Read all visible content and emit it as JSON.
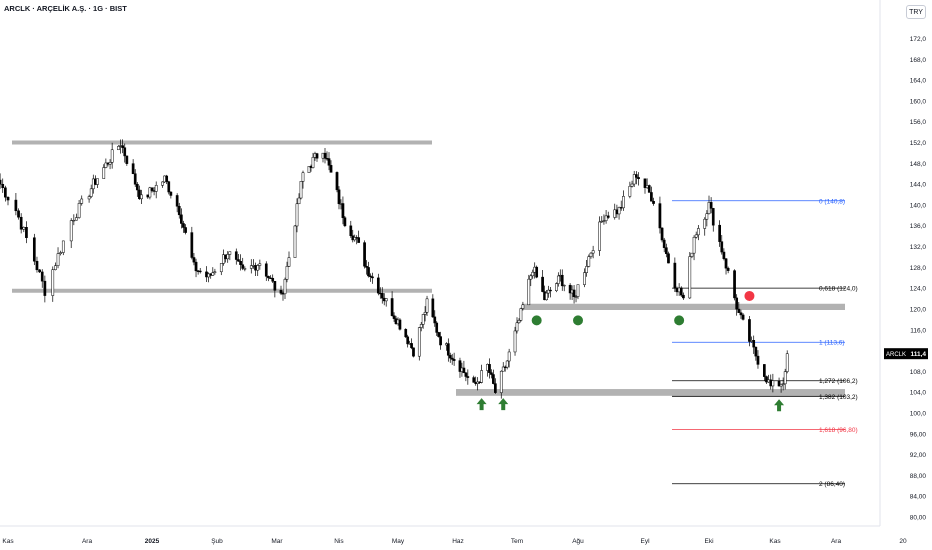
{
  "header": {
    "title": "ARCLK · ARÇELİK A.Ş. · 1G · BIST",
    "currency_button": "TRY"
  },
  "chart_data": {
    "type": "candlestick",
    "symbol": "ARCLK",
    "last_price": "111,4",
    "x_tick_labels": [
      "Kas",
      "Ara",
      "2025",
      "Şub",
      "Mar",
      "Nis",
      "May",
      "Haz",
      "Tem",
      "Ağu",
      "Eyl",
      "Eki",
      "Kas",
      "Ara",
      "20"
    ],
    "y_tick_labels": [
      "172,0",
      "168,0",
      "164,0",
      "160,0",
      "156,0",
      "152,0",
      "148,0",
      "144,0",
      "140,0",
      "136,0",
      "132,0",
      "128,0",
      "124,0",
      "120,0",
      "116,0",
      "112,0",
      "108,0",
      "104,0",
      "100,0",
      "96,00",
      "92,00",
      "88,00",
      "84,00",
      "80,00"
    ],
    "ylim": [
      78,
      175
    ],
    "grid": false,
    "colors": {
      "up": "#ffffff",
      "down": "#000000",
      "outline": "#000000",
      "fib_blue": "#2962ff",
      "fib_red": "#f23645",
      "zone": "#b2b2b2",
      "marker_green": "#2e7d32",
      "marker_red": "#f23645"
    },
    "price_path_anchors": [
      {
        "date": "2024-10-29",
        "close": 144
      },
      {
        "date": "2024-11-04",
        "close": 139
      },
      {
        "date": "2024-11-12",
        "close": 128
      },
      {
        "date": "2024-11-15",
        "close": 123.5
      },
      {
        "date": "2024-11-25",
        "close": 137
      },
      {
        "date": "2024-12-04",
        "close": 144
      },
      {
        "date": "2024-12-17",
        "close": 152
      },
      {
        "date": "2024-12-27",
        "close": 141
      },
      {
        "date": "2025-01-07",
        "close": 145
      },
      {
        "date": "2025-01-14",
        "close": 139
      },
      {
        "date": "2025-01-21",
        "close": 128
      },
      {
        "date": "2025-01-28",
        "close": 126
      },
      {
        "date": "2025-02-06",
        "close": 131
      },
      {
        "date": "2025-02-13",
        "close": 127
      },
      {
        "date": "2025-02-21",
        "close": 129
      },
      {
        "date": "2025-03-03",
        "close": 122
      },
      {
        "date": "2025-03-07",
        "close": 130
      },
      {
        "date": "2025-03-14",
        "close": 146
      },
      {
        "date": "2025-03-24",
        "close": 151
      },
      {
        "date": "2025-04-04",
        "close": 137
      },
      {
        "date": "2025-04-10",
        "close": 133
      },
      {
        "date": "2025-04-15",
        "close": 128
      },
      {
        "date": "2025-04-24",
        "close": 122
      },
      {
        "date": "2025-05-02",
        "close": 117
      },
      {
        "date": "2025-05-09",
        "close": 112
      },
      {
        "date": "2025-05-16",
        "close": 121
      },
      {
        "date": "2025-05-23",
        "close": 114
      },
      {
        "date": "2025-06-02",
        "close": 109
      },
      {
        "date": "2025-06-09",
        "close": 105
      },
      {
        "date": "2025-06-16",
        "close": 109
      },
      {
        "date": "2025-06-20",
        "close": 104
      },
      {
        "date": "2025-06-26",
        "close": 110
      },
      {
        "date": "2025-07-03",
        "close": 119
      },
      {
        "date": "2025-07-09",
        "close": 128
      },
      {
        "date": "2025-07-15",
        "close": 122
      },
      {
        "date": "2025-07-23",
        "close": 126
      },
      {
        "date": "2025-07-30",
        "close": 122
      },
      {
        "date": "2025-08-06",
        "close": 130
      },
      {
        "date": "2025-08-13",
        "close": 138
      },
      {
        "date": "2025-08-20",
        "close": 139
      },
      {
        "date": "2025-08-28",
        "close": 146
      },
      {
        "date": "2025-09-05",
        "close": 141
      },
      {
        "date": "2025-09-10",
        "close": 132
      },
      {
        "date": "2025-09-15",
        "close": 125
      },
      {
        "date": "2025-09-19",
        "close": 122
      },
      {
        "date": "2025-09-24",
        "close": 134
      },
      {
        "date": "2025-10-01",
        "close": 140
      },
      {
        "date": "2025-10-08",
        "close": 130
      },
      {
        "date": "2025-10-15",
        "close": 119
      },
      {
        "date": "2025-10-22",
        "close": 112
      },
      {
        "date": "2025-10-30",
        "close": 105
      },
      {
        "date": "2025-11-05",
        "close": 106
      },
      {
        "date": "2025-11-07",
        "close": 111.4
      }
    ],
    "levels": [
      {
        "label": "0 (140,8)",
        "price": 140.8,
        "color": "#2962ff"
      },
      {
        "label": "0,618 (124,0)",
        "price": 124.0,
        "color": "#000000"
      },
      {
        "label": "1 (113,6)",
        "price": 113.6,
        "color": "#2962ff"
      },
      {
        "label": "1,272 (106,2)",
        "price": 106.2,
        "color": "#000000"
      },
      {
        "label": "1,382 (103,2)",
        "price": 103.2,
        "color": "#000000"
      },
      {
        "label": "1,618 (96,80)",
        "price": 96.8,
        "color": "#f23645"
      },
      {
        "label": "2 (86,40)",
        "price": 86.4,
        "color": "#000000"
      }
    ],
    "support_resistance": [
      {
        "name": "range-top",
        "price": 152.0
      },
      {
        "name": "range-bottom",
        "price": 123.5
      }
    ],
    "zones": [
      {
        "name": "upper-zone",
        "price_low": 119.8,
        "price_high": 121.0
      },
      {
        "name": "lower-zone",
        "price_low": 103.3,
        "price_high": 104.6
      }
    ],
    "markers": [
      {
        "type": "up-arrow",
        "date": "2025-06-13",
        "price": 101.5,
        "color": "#2e7d32"
      },
      {
        "type": "up-arrow",
        "date": "2025-06-24",
        "price": 101.5,
        "color": "#2e7d32"
      },
      {
        "type": "up-arrow",
        "date": "2025-11-03",
        "price": 101.3,
        "color": "#2e7d32"
      },
      {
        "type": "circle",
        "date": "2025-07-11",
        "price": 117.8,
        "color": "#2e7d32"
      },
      {
        "type": "circle",
        "date": "2025-08-01",
        "price": 117.8,
        "color": "#2e7d32"
      },
      {
        "type": "circle",
        "date": "2025-09-17",
        "price": 117.8,
        "color": "#2e7d32"
      },
      {
        "type": "circle",
        "date": "2025-10-20",
        "price": 122.5,
        "color": "#f23645"
      }
    ]
  }
}
